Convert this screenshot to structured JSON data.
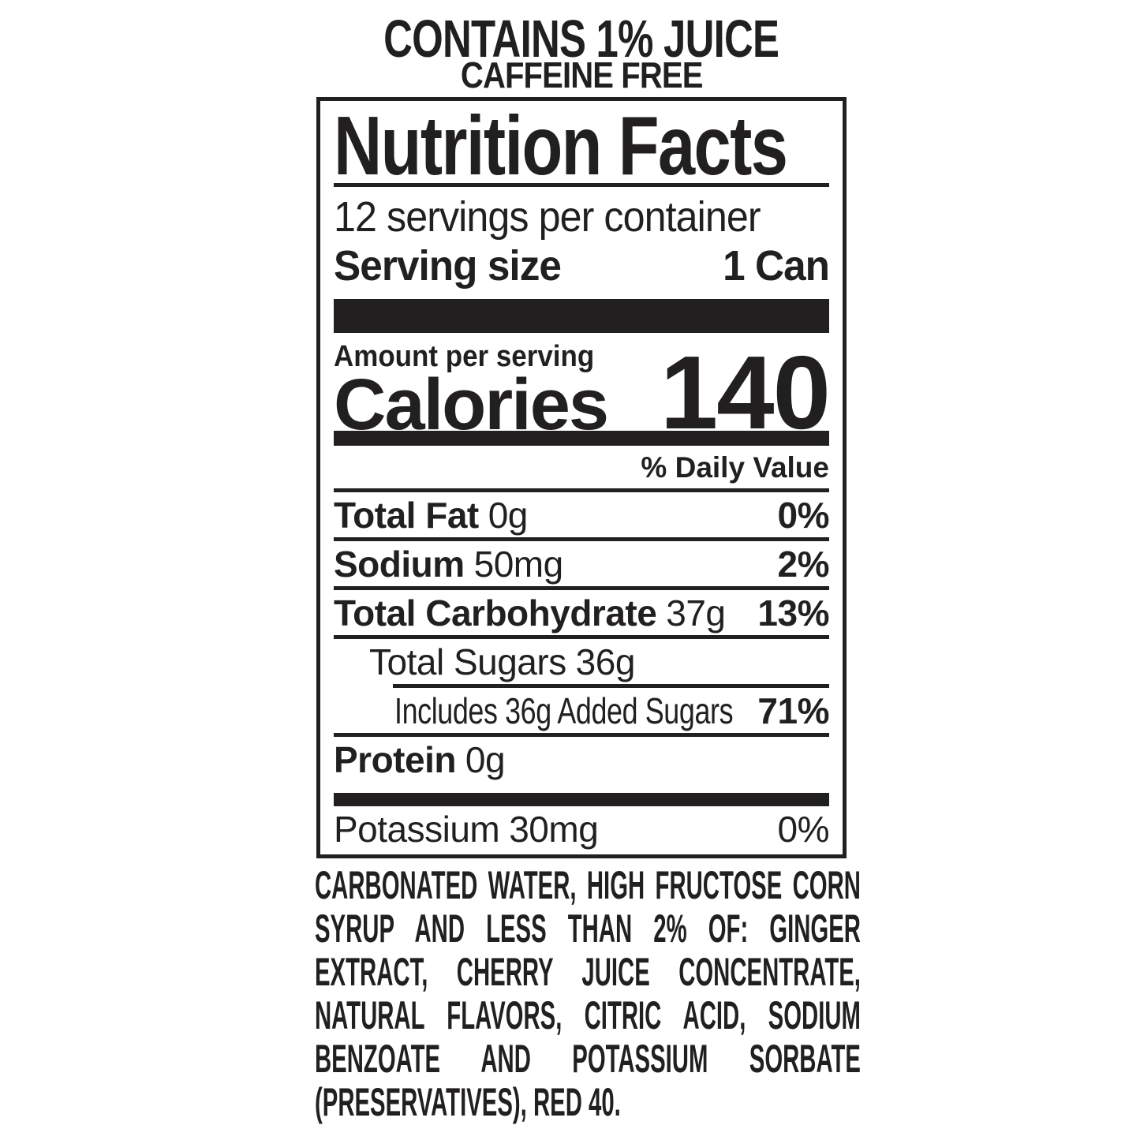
{
  "page": {
    "background": "#ffffff",
    "ink": "#221f20"
  },
  "header": {
    "line1": "CONTAINS 1% JUICE",
    "line2": "CAFFEINE FREE"
  },
  "label": {
    "title": "Nutrition Facts",
    "servings_per_container": "12 servings per container",
    "serving_size_label": "Serving size",
    "serving_size_value": "1 Can",
    "amount_per_serving": "Amount per serving",
    "calories_label": "Calories",
    "calories_value": "140",
    "daily_value_header": "% Daily Value",
    "rows": [
      {
        "name": "Total Fat",
        "amount": "0g",
        "dv": "0%"
      },
      {
        "name": "Sodium",
        "amount": "50mg",
        "dv": "2%"
      },
      {
        "name": "Total Carbohydrate",
        "amount": "37g",
        "dv": "13%"
      },
      {
        "name": "Total Sugars",
        "amount": "36g",
        "dv": ""
      },
      {
        "name": "Includes 36g Added Sugars",
        "amount": "",
        "dv": "71%"
      },
      {
        "name": "Protein",
        "amount": "0g",
        "dv": ""
      },
      {
        "name": "Potassium",
        "amount": "30mg",
        "dv": "0%"
      }
    ]
  },
  "ingredients": {
    "full_text": "CARBONATED WATER, HIGH FRUCTOSE CORN SYRUP AND LESS THAN 2% OF: GINGER EXTRACT, CHERRY JUICE CONCENTRATE, NATURAL FLAVORS, CITRIC ACID, SODIUM BENZOATE AND POTASSIUM SORBATE (PRESERVATIVES), RED 40.",
    "lines": [
      "CARBONATED WATER, HIGH FRUCTOSE CORN",
      "SYRUP AND LESS THAN 2% OF: GINGER",
      "EXTRACT, CHERRY JUICE CONCENTRATE,",
      "NATURAL FLAVORS, CITRIC ACID, SODIUM",
      "BENZOATE AND POTASSIUM SORBATE",
      "(PRESERVATIVES), RED 40."
    ]
  }
}
